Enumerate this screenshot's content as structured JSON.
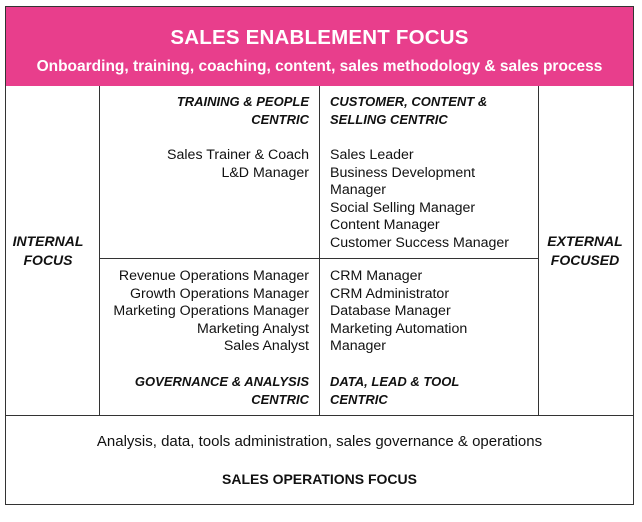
{
  "header": {
    "title": "SALES ENABLEMENT FOCUS",
    "subtitle": "Onboarding, training, coaching, content, sales methodology & sales process",
    "color": "#e83e8c"
  },
  "left_axis": {
    "line1": "INTERNAL",
    "line2": "FOCUS"
  },
  "right_axis": {
    "line1": "EXTERNAL",
    "line2": "FOCUSED"
  },
  "quadrants": {
    "top_left": {
      "title_line1": "TRAINING & PEOPLE",
      "title_line2": "CENTRIC",
      "roles": [
        "Sales Trainer & Coach",
        "L&D Manager"
      ]
    },
    "top_right": {
      "title_line1": "CUSTOMER, CONTENT &",
      "title_line2": "SELLING CENTRIC",
      "roles": [
        "Sales Leader",
        "Business Development",
        "Manager",
        "Social Selling Manager",
        "Content Manager",
        "Customer Success Manager"
      ]
    },
    "bottom_left": {
      "title_line1": "GOVERNANCE & ANALYSIS",
      "title_line2": "CENTRIC",
      "roles": [
        "Revenue Operations Manager",
        "Growth Operations Manager",
        "Marketing Operations Manager",
        "Marketing Analyst",
        "Sales Analyst"
      ]
    },
    "bottom_right": {
      "title_line1": "DATA, LEAD & TOOL",
      "title_line2": "CENTRIC",
      "roles": [
        "CRM Manager",
        "CRM Administrator",
        "Database Manager",
        "Marketing Automation",
        "Manager"
      ]
    }
  },
  "footer": {
    "subtitle": "Analysis, data, tools administration, sales governance & operations",
    "title": "SALES OPERATIONS FOCUS"
  }
}
